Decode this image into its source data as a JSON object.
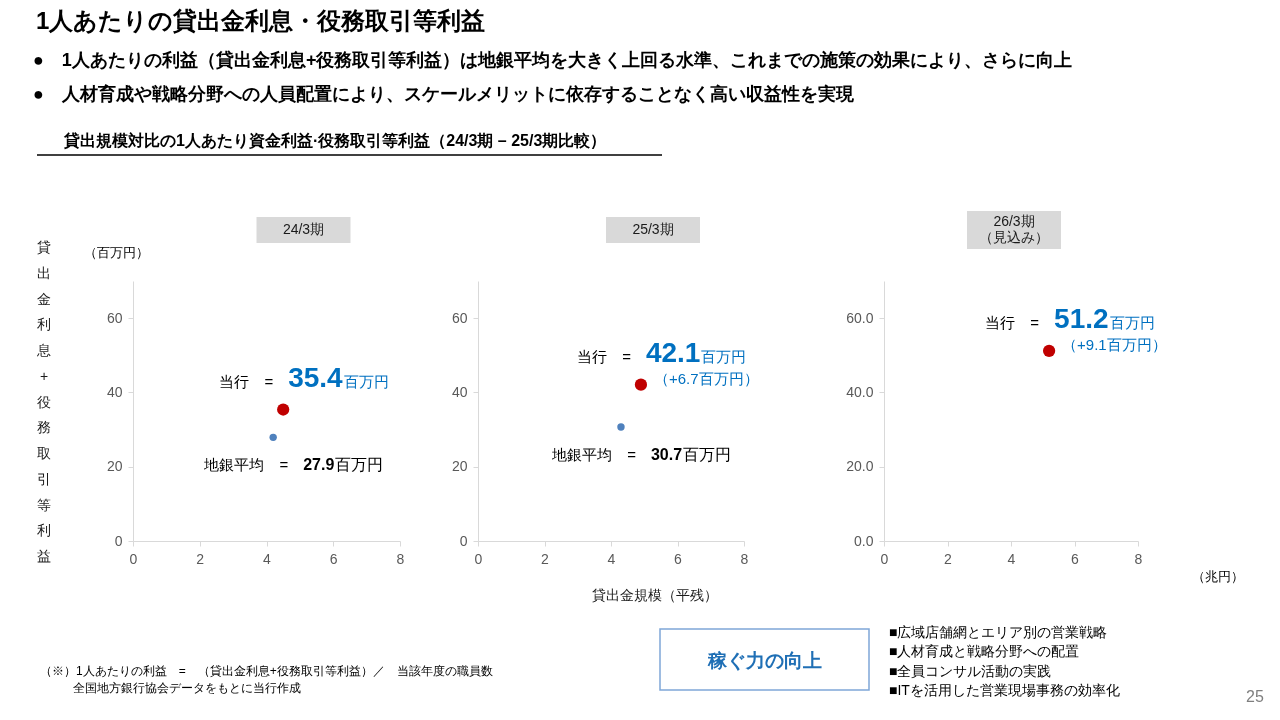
{
  "chart_data": [
    {
      "type": "other",
      "title": "1人あたりの貸出金利息・役務取引等利益",
      "annotations": [
        "●　1人あたりの利益（貸出金利息+役務取引等利益）は地銀平均を大きく上回る水準、これまでの施策の効果により、さらに向上",
        "●　人材育成や戦略分野への人員配置により、スケールメリットに依存することなく高い収益性を実現"
      ],
      "subtitle": "貸出規模対比の1人あたり資金利益·役務取引等利益（24/3期 – 25/3期比較）"
    },
    {
      "type": "scatter",
      "title": "24/3期",
      "ylabel": "貸出金利息+役務取引等利益",
      "xlim": [
        0,
        8
      ],
      "xticks": [
        0,
        2,
        4,
        6,
        8
      ],
      "ylim": [
        0,
        70
      ],
      "yticks": [
        0,
        20,
        40,
        60
      ],
      "marker": "circle",
      "series": [
        {
          "color": "#c00000",
          "x": [
            4.5
          ],
          "values": [
            35.4
          ]
        },
        {
          "color": "#4f81bd",
          "x": [
            4.2
          ],
          "values": [
            27.9
          ]
        }
      ],
      "annotations": [
        "（百万円）",
        {
          "text": "当行　=　35.4百万円",
          "x": 4.5,
          "y": 35.4
        },
        {
          "text": "地銀平均　=　27.9百万円",
          "x": 4.2,
          "y": 27.9
        }
      ]
    },
    {
      "type": "scatter",
      "title": "25/3期",
      "xlabel": "貸出金規模（平残）",
      "xlim": [
        0,
        8
      ],
      "xticks": [
        0,
        2,
        4,
        6,
        8
      ],
      "ylim": [
        0,
        70
      ],
      "yticks": [
        0,
        20,
        40,
        60
      ],
      "marker": "circle",
      "series": [
        {
          "color": "#c00000",
          "x": [
            4.9
          ],
          "values": [
            42.1
          ]
        },
        {
          "color": "#4f81bd",
          "x": [
            4.3
          ],
          "values": [
            30.7
          ]
        }
      ],
      "annotations": [
        {
          "text": "当行　=　42.1百万円",
          "x": 4.9,
          "y": 42.1
        },
        {
          "text": "（+6.7百万円）",
          "x": 4.9,
          "y": 42.1
        },
        {
          "text": "地銀平均　=　30.7百万円",
          "x": 4.3,
          "y": 30.7
        }
      ]
    },
    {
      "type": "scatter",
      "title": "26/3期",
      "subtitle": "（見込み）",
      "xlim": [
        0,
        8
      ],
      "xticks": [
        0,
        2,
        4,
        6,
        8
      ],
      "ylim": [
        0,
        70
      ],
      "yticks": [
        {
          "value": 0,
          "label": "0.0"
        },
        {
          "value": 20,
          "label": "20.0"
        },
        {
          "value": 40,
          "label": "40.0"
        },
        {
          "value": 60,
          "label": "60.0"
        }
      ],
      "marker": "circle",
      "series": [
        {
          "color": "#c00000",
          "x": [
            5.2
          ],
          "values": [
            51.2
          ]
        }
      ],
      "annotations": [
        {
          "text": "当行　=　51.2百万円",
          "x": 5.2,
          "y": 51.2
        },
        {
          "text": "（+9.1百万円）",
          "x": 5.2,
          "y": 51.2
        },
        "（兆円）"
      ]
    },
    {
      "type": "other",
      "annotations": [
        "（※）1人あたりの利益　=　（貸出金利息+役務取引等利益）／　当該年度の職員数",
        "全国地方銀行協会データをもとに当行作成"
      ]
    },
    {
      "type": "other",
      "title": "稼ぐ力の向上",
      "annotations": [
        "■広域店舗網とエリア別の営業戦略",
        "■人材育成と戦略分野への配置",
        "■全員コンサル活動の実践",
        "■ITを活用した営業現場事務の効率化"
      ]
    },
    {
      "type": "other",
      "annotations": [
        "25"
      ]
    }
  ]
}
